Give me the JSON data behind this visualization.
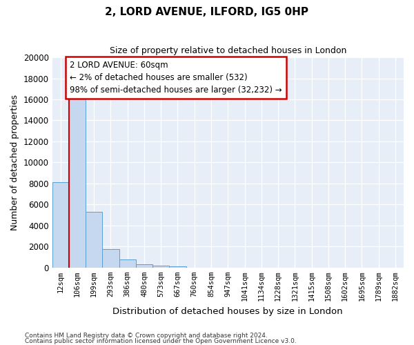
{
  "title": "2, LORD AVENUE, ILFORD, IG5 0HP",
  "subtitle": "Size of property relative to detached houses in London",
  "xlabel": "Distribution of detached houses by size in London",
  "ylabel": "Number of detached properties",
  "categories": [
    "12sqm",
    "106sqm",
    "199sqm",
    "293sqm",
    "386sqm",
    "480sqm",
    "573sqm",
    "667sqm",
    "760sqm",
    "854sqm",
    "947sqm",
    "1041sqm",
    "1134sqm",
    "1228sqm",
    "1321sqm",
    "1415sqm",
    "1508sqm",
    "1602sqm",
    "1695sqm",
    "1789sqm",
    "1882sqm"
  ],
  "values": [
    8100,
    16500,
    5300,
    1750,
    780,
    300,
    200,
    100,
    0,
    0,
    0,
    0,
    0,
    0,
    0,
    0,
    0,
    0,
    0,
    0,
    0
  ],
  "bar_color": "#c5d8f0",
  "bar_edge_color": "#5a9fd4",
  "annotation_text": "2 LORD AVENUE: 60sqm\n← 2% of detached houses are smaller (532)\n98% of semi-detached houses are larger (32,232) →",
  "property_line_color": "#cc0000",
  "annotation_box_edgecolor": "#cc0000",
  "ylim": [
    0,
    20000
  ],
  "yticks": [
    0,
    2000,
    4000,
    6000,
    8000,
    10000,
    12000,
    14000,
    16000,
    18000,
    20000
  ],
  "footer_line1": "Contains HM Land Registry data © Crown copyright and database right 2024.",
  "footer_line2": "Contains public sector information licensed under the Open Government Licence v3.0.",
  "background_color": "#e8eef8",
  "fig_bg_color": "#ffffff"
}
